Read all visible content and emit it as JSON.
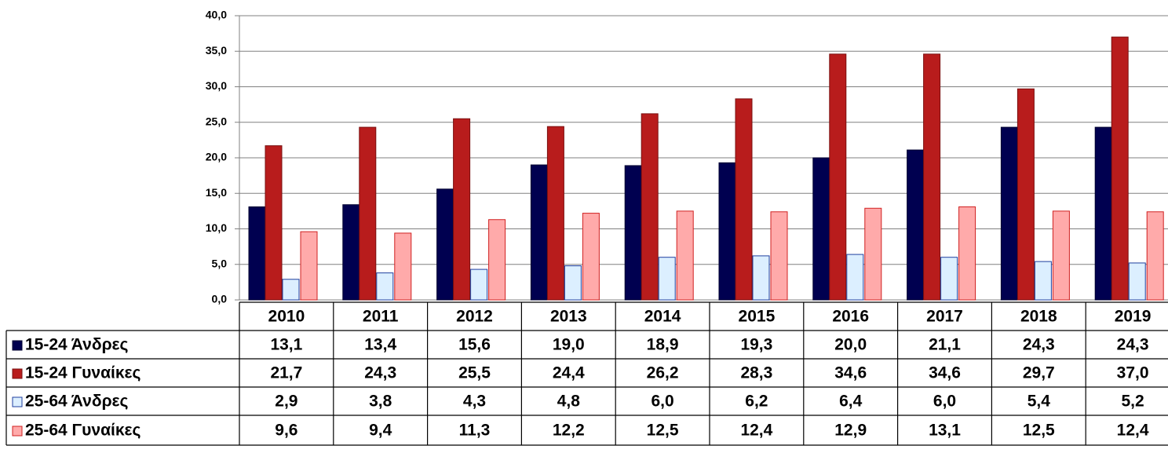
{
  "chart_data": {
    "type": "bar",
    "categories": [
      "2010",
      "2011",
      "2012",
      "2013",
      "2014",
      "2015",
      "2016",
      "2017",
      "2018",
      "2019"
    ],
    "series": [
      {
        "name": "15-24  Άνδρες",
        "color": "#000050",
        "stroke": "#000030",
        "values": [
          13.1,
          13.4,
          15.6,
          19.0,
          18.9,
          19.3,
          20.0,
          21.1,
          24.3,
          24.3
        ],
        "value_labels": [
          "13,1",
          "13,4",
          "15,6",
          "19,0",
          "18,9",
          "19,3",
          "20,0",
          "21,1",
          "24,3",
          "24,3"
        ]
      },
      {
        "name": "15-24 Γυναίκες",
        "color": "#b81c1c",
        "stroke": "#7a0f0f",
        "values": [
          21.7,
          24.3,
          25.5,
          24.4,
          26.2,
          28.3,
          34.6,
          34.6,
          29.7,
          37.0
        ],
        "value_labels": [
          "21,7",
          "24,3",
          "25,5",
          "24,4",
          "26,2",
          "28,3",
          "34,6",
          "34,6",
          "29,7",
          "37,0"
        ]
      },
      {
        "name": "25-64  Άνδρες",
        "color": "#dcefff",
        "stroke": "#1f3f9f",
        "values": [
          2.9,
          3.8,
          4.3,
          4.8,
          6.0,
          6.2,
          6.4,
          6.0,
          5.4,
          5.2
        ],
        "value_labels": [
          "2,9",
          "3,8",
          "4,3",
          "4,8",
          "6,0",
          "6,2",
          "6,4",
          "6,0",
          "5,4",
          "5,2"
        ]
      },
      {
        "name": "25-64 Γυναίκες",
        "color": "#ffaaaa",
        "stroke": "#d02020",
        "values": [
          9.6,
          9.4,
          11.3,
          12.2,
          12.5,
          12.4,
          12.9,
          13.1,
          12.5,
          12.4
        ],
        "value_labels": [
          "9,6",
          "9,4",
          "11,3",
          "12,2",
          "12,5",
          "12,4",
          "12,9",
          "13,1",
          "12,5",
          "12,4"
        ]
      }
    ],
    "ylim": [
      0,
      40
    ],
    "yticks": [
      {
        "value": 0,
        "label": "0,0"
      },
      {
        "value": 5,
        "label": "5,0"
      },
      {
        "value": 10,
        "label": "10,0"
      },
      {
        "value": 15,
        "label": "15,0"
      },
      {
        "value": 20,
        "label": "20,0"
      },
      {
        "value": 25,
        "label": "25,0"
      },
      {
        "value": 30,
        "label": "30,0"
      },
      {
        "value": 35,
        "label": "35,0"
      },
      {
        "value": 40,
        "label": "40,0"
      }
    ],
    "grid": true
  }
}
